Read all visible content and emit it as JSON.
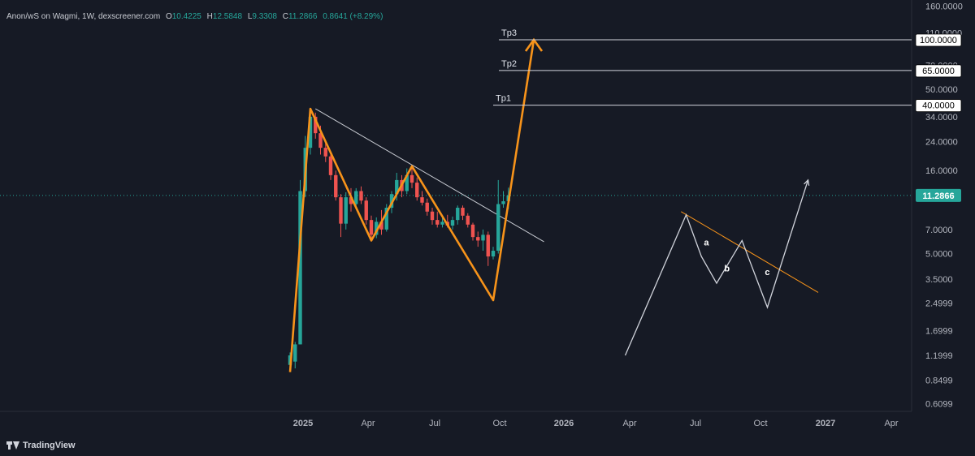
{
  "header": {
    "title": "Anon/wS on Wagmi, 1W, dexscreener.com",
    "open_label": "O",
    "open": "10.4225",
    "high_label": "H",
    "high": "12.5848",
    "low_label": "L",
    "low": "9.3308",
    "close_label": "C",
    "close": "11.2866",
    "change": "0.8641 (+8.29%)"
  },
  "brand": "TradingView",
  "colors": {
    "background": "#161a25",
    "up": "#26a69a",
    "down": "#ef5350",
    "pattern": "#f7931a",
    "text": "#b2b5be",
    "white_line": "#d1d4dc"
  },
  "chart_data": {
    "type": "candlestick",
    "timeframe": "1W",
    "price_scale": "log",
    "x_ticks": [
      "2025",
      "Apr",
      "Jul",
      "Oct",
      "2026",
      "Apr",
      "Jul",
      "Oct",
      "2027",
      "Apr"
    ],
    "y_ticks": [
      "160.0000",
      "110.0000",
      "70.0000",
      "50.0000",
      "34.0000",
      "24.0000",
      "16.0000",
      "7.0000",
      "5.0000",
      "3.5000",
      "2.4999",
      "1.6999",
      "1.1999",
      "0.8499",
      "0.6099"
    ],
    "last_price": "11.2866",
    "candles": [
      {
        "o": 1.05,
        "h": 1.25,
        "l": 1.0,
        "c": 1.2
      },
      {
        "o": 1.1,
        "h": 1.45,
        "l": 1.0,
        "c": 1.4
      },
      {
        "o": 1.4,
        "h": 14.0,
        "l": 1.4,
        "c": 12.0
      },
      {
        "o": 12.0,
        "h": 26.0,
        "l": 11.0,
        "c": 22.0
      },
      {
        "o": 22.0,
        "h": 38.0,
        "l": 20.0,
        "c": 34.0
      },
      {
        "o": 34.0,
        "h": 36.0,
        "l": 25.0,
        "c": 27.0
      },
      {
        "o": 27.0,
        "h": 30.0,
        "l": 20.0,
        "c": 22.0
      },
      {
        "o": 22.0,
        "h": 24.0,
        "l": 18.0,
        "c": 19.5
      },
      {
        "o": 19.5,
        "h": 20.0,
        "l": 14.0,
        "c": 15.0
      },
      {
        "o": 15.0,
        "h": 16.0,
        "l": 10.5,
        "c": 11.0
      },
      {
        "o": 11.0,
        "h": 11.5,
        "l": 6.3,
        "c": 7.6
      },
      {
        "o": 7.6,
        "h": 11.8,
        "l": 7.0,
        "c": 11.0
      },
      {
        "o": 11.0,
        "h": 12.5,
        "l": 9.0,
        "c": 10.0
      },
      {
        "o": 10.0,
        "h": 12.5,
        "l": 9.5,
        "c": 12.0
      },
      {
        "o": 12.0,
        "h": 12.8,
        "l": 10.0,
        "c": 10.5
      },
      {
        "o": 10.5,
        "h": 11.0,
        "l": 7.5,
        "c": 8.0
      },
      {
        "o": 8.0,
        "h": 8.5,
        "l": 6.2,
        "c": 6.5
      },
      {
        "o": 6.5,
        "h": 8.3,
        "l": 6.2,
        "c": 7.8
      },
      {
        "o": 7.8,
        "h": 9.2,
        "l": 6.5,
        "c": 7.0
      },
      {
        "o": 7.0,
        "h": 10.0,
        "l": 6.8,
        "c": 9.5
      },
      {
        "o": 9.5,
        "h": 12.0,
        "l": 8.8,
        "c": 11.5
      },
      {
        "o": 11.5,
        "h": 15.5,
        "l": 10.5,
        "c": 14.0
      },
      {
        "o": 14.0,
        "h": 15.0,
        "l": 11.0,
        "c": 12.0
      },
      {
        "o": 12.0,
        "h": 16.5,
        "l": 11.5,
        "c": 15.0
      },
      {
        "o": 15.0,
        "h": 16.5,
        "l": 12.5,
        "c": 13.5
      },
      {
        "o": 13.5,
        "h": 14.5,
        "l": 10.5,
        "c": 11.0
      },
      {
        "o": 11.0,
        "h": 12.0,
        "l": 9.8,
        "c": 10.2
      },
      {
        "o": 10.2,
        "h": 10.8,
        "l": 8.5,
        "c": 9.0
      },
      {
        "o": 9.0,
        "h": 9.5,
        "l": 7.5,
        "c": 8.0
      },
      {
        "o": 8.0,
        "h": 9.0,
        "l": 7.2,
        "c": 7.5
      },
      {
        "o": 7.5,
        "h": 8.3,
        "l": 7.2,
        "c": 7.8
      },
      {
        "o": 7.8,
        "h": 8.6,
        "l": 7.2,
        "c": 7.4
      },
      {
        "o": 7.4,
        "h": 8.4,
        "l": 7.0,
        "c": 8.0
      },
      {
        "o": 8.0,
        "h": 9.8,
        "l": 7.5,
        "c": 9.5
      },
      {
        "o": 9.5,
        "h": 9.8,
        "l": 8.0,
        "c": 8.5
      },
      {
        "o": 8.5,
        "h": 8.8,
        "l": 7.2,
        "c": 7.5
      },
      {
        "o": 7.5,
        "h": 7.7,
        "l": 6.0,
        "c": 6.3
      },
      {
        "o": 6.3,
        "h": 6.8,
        "l": 5.5,
        "c": 6.0
      },
      {
        "o": 6.0,
        "h": 7.0,
        "l": 5.2,
        "c": 6.5
      },
      {
        "o": 6.5,
        "h": 6.8,
        "l": 4.2,
        "c": 4.8
      },
      {
        "o": 4.8,
        "h": 5.5,
        "l": 4.6,
        "c": 5.2
      },
      {
        "o": 5.2,
        "h": 14.0,
        "l": 5.0,
        "c": 10.0
      },
      {
        "o": 10.0,
        "h": 12.0,
        "l": 9.5,
        "c": 10.4
      },
      {
        "o": 10.4225,
        "h": 12.5848,
        "l": 9.3308,
        "c": 11.2866
      }
    ],
    "pattern_path": [
      {
        "i": 0,
        "y": 0.95
      },
      {
        "i": 4,
        "y": 38.0
      },
      {
        "i": 16,
        "y": 6.0
      },
      {
        "i": 24,
        "y": 17.0
      },
      {
        "i": 40,
        "y": 2.6
      },
      {
        "i": 48,
        "y": 100.0
      }
    ],
    "trendline": [
      {
        "i": 5,
        "y": 38.0
      },
      {
        "i": 50,
        "y": 5.9
      }
    ],
    "targets": [
      {
        "label": "Tp3",
        "value": 100.0,
        "tag": "100.0000"
      },
      {
        "label": "Tp2",
        "value": 65.0,
        "tag": "65.0000"
      },
      {
        "label": "Tp1",
        "value": 40.0,
        "tag": "40.0000"
      }
    ],
    "scenario": {
      "path": [
        {
          "i": 66,
          "y": 1.1999
        },
        {
          "i": 78,
          "y": 8.6
        },
        {
          "i": 81,
          "y": 4.8
        },
        {
          "i": 84,
          "y": 3.3
        },
        {
          "i": 89,
          "y": 6.0
        },
        {
          "i": 94,
          "y": 2.35
        },
        {
          "i": 102,
          "y": 14.0
        }
      ],
      "line": [
        {
          "i": 77,
          "y": 9.0
        },
        {
          "i": 104,
          "y": 2.9
        }
      ],
      "wave_labels": [
        {
          "text": "a",
          "i": 81.5,
          "y": 5.6
        },
        {
          "text": "b",
          "i": 85.5,
          "y": 3.9
        },
        {
          "text": "c",
          "i": 93.5,
          "y": 3.7
        }
      ]
    }
  }
}
